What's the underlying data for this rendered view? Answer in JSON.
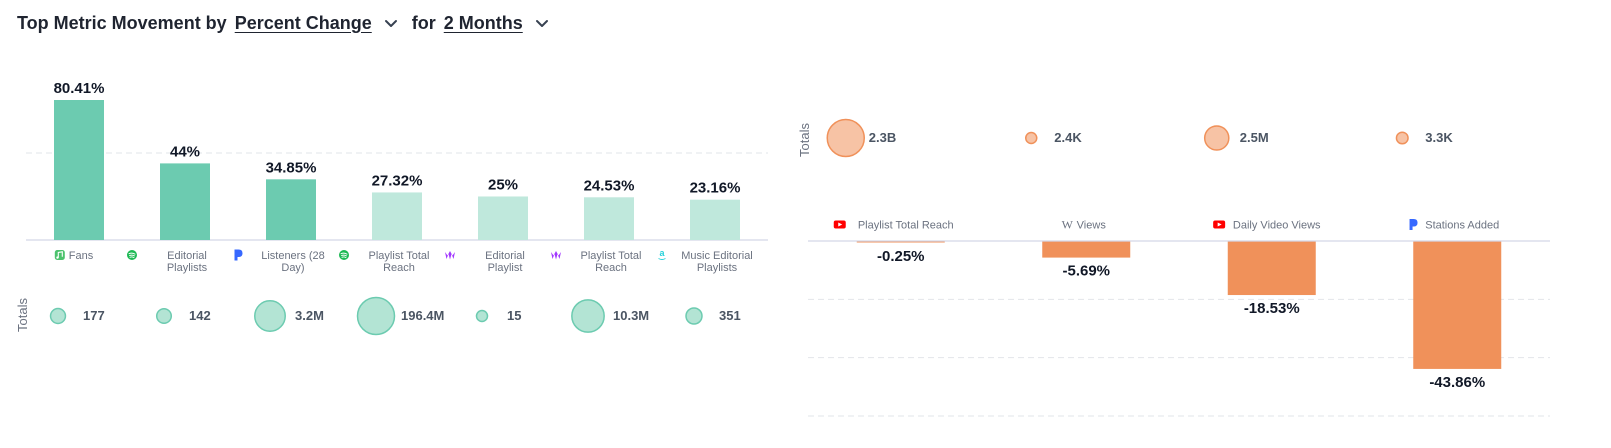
{
  "header": {
    "title": "Top Metric Movement by",
    "metric_select": "Percent Change",
    "for_word": "for",
    "period_select": "2 Months"
  },
  "colors": {
    "positive_strong": "#6ccbb0",
    "positive_light": "#bfe8dc",
    "negative": "#f0915a",
    "negative_bubble": "#f7c3a5",
    "positive_bubble": "#b3e4d4"
  },
  "chart_data": [
    {
      "type": "bar",
      "name": "gainers",
      "totals_label": "Totals",
      "categories": [
        {
          "label": "Fans",
          "icon": "apple-music-icon",
          "icon_color": "#4cc26d"
        },
        {
          "label": "Editorial Playlists",
          "icon": "spotify-icon",
          "icon_color": "#1db954"
        },
        {
          "label": "Listeners (28 Day)",
          "icon": "pandora-icon",
          "icon_color": "#3668ff"
        },
        {
          "label": "Playlist Total Reach",
          "icon": "spotify-icon",
          "icon_color": "#1db954"
        },
        {
          "label": "Editorial Playlist",
          "icon": "deezer-icon",
          "icon_color": "#a238ff"
        },
        {
          "label": "Playlist Total Reach",
          "icon": "deezer-icon",
          "icon_color": "#a238ff"
        },
        {
          "label": "Music Editorial Playlists",
          "icon": "amazon-music-icon",
          "icon_color": "#25d1da"
        }
      ],
      "values": [
        80.41,
        44,
        34.85,
        27.32,
        25,
        24.53,
        23.16
      ],
      "value_labels": [
        "80.41%",
        "44%",
        "34.85%",
        "27.32%",
        "25%",
        "24.53%",
        "23.16%"
      ],
      "emphasis": [
        true,
        true,
        true,
        false,
        false,
        false,
        false
      ],
      "totals": [
        "177",
        "142",
        "3.2M",
        "196.4M",
        "15",
        "10.3M",
        "351"
      ],
      "total_values": [
        177,
        142,
        3200000,
        196400000,
        15,
        10300000,
        351
      ],
      "gridline": 50,
      "ylim": [
        0,
        80.41
      ],
      "grid": true
    },
    {
      "type": "bar",
      "name": "decliners",
      "totals_label": "Totals",
      "categories": [
        {
          "label": "Playlist Total Reach",
          "icon": "youtube-icon",
          "icon_color": "#ff0000"
        },
        {
          "label": "Views",
          "icon": "wikipedia-icon",
          "icon_color": "#6b7280"
        },
        {
          "label": "Daily Video Views",
          "icon": "youtube-icon",
          "icon_color": "#ff0000"
        },
        {
          "label": "Stations Added",
          "icon": "pandora-icon",
          "icon_color": "#3668ff"
        }
      ],
      "values": [
        -0.25,
        -5.69,
        -18.53,
        -43.86
      ],
      "value_labels": [
        "-0.25%",
        "-5.69%",
        "-18.53%",
        "-43.86%"
      ],
      "totals": [
        "2.3B",
        "2.4K",
        "2.5M",
        "3.3K"
      ],
      "total_values": [
        2300000000,
        2400,
        2500000,
        3300
      ],
      "gridlines": [
        -20,
        -40,
        -60
      ],
      "ylim": [
        -60,
        0
      ],
      "grid": true
    }
  ]
}
